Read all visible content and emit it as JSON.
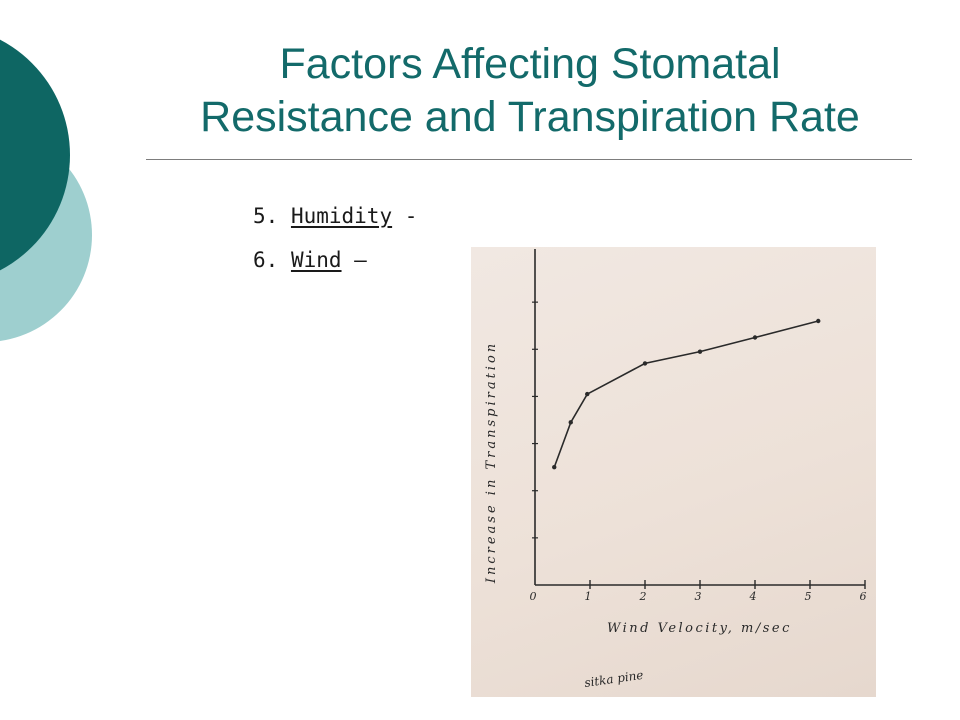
{
  "title": {
    "line1": "Factors Affecting Stomatal",
    "line2": "Resistance and Transpiration Rate"
  },
  "bullets": [
    {
      "number": "5.",
      "term": "Humidity",
      "suffix": " -"
    },
    {
      "number": "6.",
      "term": "Wind",
      "suffix": " –"
    }
  ],
  "colors": {
    "title": "#136a6a",
    "deco_dark": "#0e6663",
    "deco_light": "#9ecfcf",
    "paper": "#eee3da",
    "ink": "#2a2a2a"
  },
  "chart_data": {
    "type": "line",
    "xlabel": "Wind Velocity, m/sec",
    "ylabel": "Increase in Transpiration",
    "xlim": [
      0,
      6
    ],
    "x_ticks": [
      "0",
      "1",
      "2",
      "3",
      "4",
      "5",
      "6"
    ],
    "series": [
      {
        "x": [
          0.35,
          0.65,
          0.95,
          2.0,
          3.0,
          4.0,
          5.15
        ],
        "y": [
          2.5,
          3.45,
          4.05,
          4.7,
          4.95,
          5.25,
          5.6
        ]
      }
    ],
    "ylim": [
      0,
      7
    ],
    "grid": false,
    "annotation": "sitka pine"
  }
}
